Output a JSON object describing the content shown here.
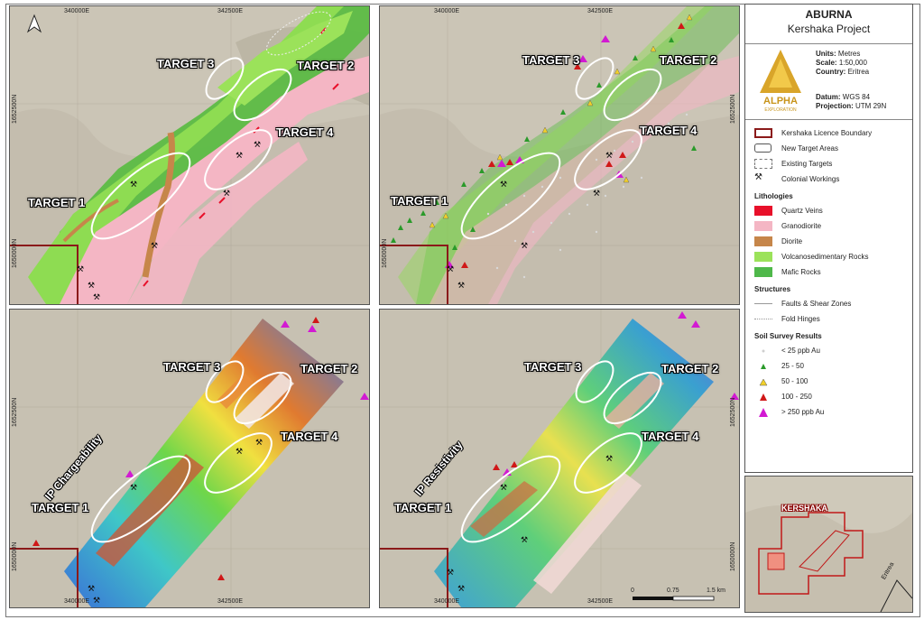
{
  "map": {
    "panels": [
      {
        "id": "lithology",
        "label": ""
      },
      {
        "id": "soil",
        "label": ""
      },
      {
        "id": "chargeability",
        "label": "IP Chargeability"
      },
      {
        "id": "resistivity",
        "label": "IP Resistivity"
      }
    ],
    "targets": [
      "TARGET 1",
      "TARGET 2",
      "TARGET 3",
      "TARGET 4"
    ],
    "coords": {
      "x1": "340000E",
      "x2": "342500E",
      "y1": "1652500N",
      "y2": "1650000N"
    },
    "scale_bar": {
      "v0": "0",
      "v1": "0.75",
      "v2": "1.5 km"
    },
    "north_symbol": "north-arrow"
  },
  "legend": {
    "title": "ABURNA",
    "subtitle": "Kershaka Project",
    "company": "ALPHA",
    "company_sub": "EXPLORATION",
    "units_label": "Units:",
    "units": "Metres",
    "scale_label": "Scale:",
    "scale": "1:50,000",
    "country_label": "Country:",
    "country": "Eritrea",
    "datum_label": "Datum:",
    "datum": "WGS 84",
    "projection_label": "Projection:",
    "projection": "UTM 29N",
    "boundary_items": [
      {
        "label": "Kershaka Licence Boundary"
      },
      {
        "label": "New Target Areas"
      },
      {
        "label": "Existing Targets"
      },
      {
        "label": "Colonial Workings"
      }
    ],
    "lithologies_title": "Lithologies",
    "lithologies": [
      {
        "label": "Quartz Veins",
        "color": "#e8102a"
      },
      {
        "label": "Granodiorite",
        "color": "#f4b6c4"
      },
      {
        "label": "Diorite",
        "color": "#c6864a"
      },
      {
        "label": "Volcanosedimentary Rocks",
        "color": "#9be25a"
      },
      {
        "label": "Mafic Rocks",
        "color": "#4fb84a"
      }
    ],
    "structures_title": "Structures",
    "structures": [
      {
        "label": "Faults & Shear Zones"
      },
      {
        "label": "Fold Hinges"
      }
    ],
    "soil_title": "Soil Survey Results",
    "soil": [
      {
        "label": "< 25 ppb Au",
        "color": "#cfcfcf"
      },
      {
        "label": "25 - 50",
        "color": "#2a9a2a"
      },
      {
        "label": "50 - 100",
        "color": "#f2d02a"
      },
      {
        "label": "100 - 250",
        "color": "#d01818"
      },
      {
        "label": "> 250 ppb Au",
        "color": "#d21ad2"
      }
    ]
  },
  "inset": {
    "label": "KERSHAKA",
    "country": "Eritrea"
  }
}
